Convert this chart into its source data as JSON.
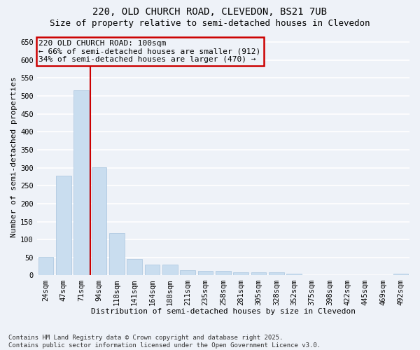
{
  "title_line1": "220, OLD CHURCH ROAD, CLEVEDON, BS21 7UB",
  "title_line2": "Size of property relative to semi-detached houses in Clevedon",
  "xlabel": "Distribution of semi-detached houses by size in Clevedon",
  "ylabel": "Number of semi-detached properties",
  "categories": [
    "24sqm",
    "47sqm",
    "71sqm",
    "94sqm",
    "118sqm",
    "141sqm",
    "164sqm",
    "188sqm",
    "211sqm",
    "235sqm",
    "258sqm",
    "281sqm",
    "305sqm",
    "328sqm",
    "352sqm",
    "375sqm",
    "398sqm",
    "422sqm",
    "445sqm",
    "469sqm",
    "492sqm"
  ],
  "values": [
    52,
    278,
    515,
    302,
    118,
    46,
    30,
    30,
    14,
    13,
    13,
    8,
    8,
    8,
    5,
    1,
    1,
    0,
    0,
    0,
    4
  ],
  "bar_color": "#c9ddef",
  "bar_edge_color": "#a8c4de",
  "vline_after_bar": 2,
  "vline_color": "#cc0000",
  "annotation_box_text": "220 OLD CHURCH ROAD: 100sqm\n← 66% of semi-detached houses are smaller (912)\n34% of semi-detached houses are larger (470) →",
  "annotation_box_color": "#cc0000",
  "ylim": [
    0,
    660
  ],
  "yticks": [
    0,
    50,
    100,
    150,
    200,
    250,
    300,
    350,
    400,
    450,
    500,
    550,
    600,
    650
  ],
  "footer_line1": "Contains HM Land Registry data © Crown copyright and database right 2025.",
  "footer_line2": "Contains public sector information licensed under the Open Government Licence v3.0.",
  "background_color": "#eef2f8",
  "grid_color": "#ffffff",
  "title_fontsize": 10,
  "subtitle_fontsize": 9,
  "axis_label_fontsize": 8,
  "tick_fontsize": 7.5,
  "annotation_fontsize": 8,
  "footer_fontsize": 6.5
}
